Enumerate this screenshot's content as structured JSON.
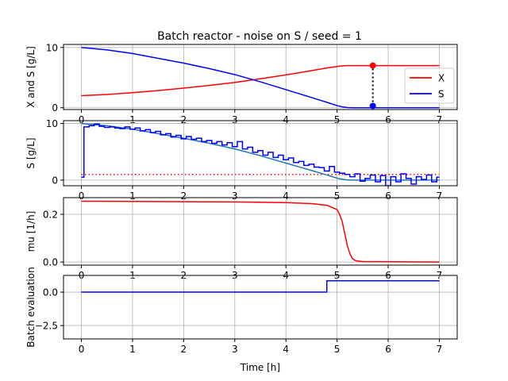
{
  "title": "Batch reactor - noise on S / seed = 1",
  "colors": {
    "red": "#ff0000",
    "blue": "#0000ff",
    "teal": "#1f77b4",
    "grid": "#b0b0b0",
    "black": "#000000"
  },
  "chart_data": [
    {
      "type": "line",
      "ylabel": "X and S [g/L]",
      "xlim": [
        -0.35,
        7.35
      ],
      "ylim": [
        -0.3,
        10.5
      ],
      "xticks": [
        0,
        1,
        2,
        3,
        4,
        5,
        6,
        7
      ],
      "yticks": [
        0,
        10
      ],
      "grid": true,
      "legend": {
        "placement": "right",
        "entries": [
          "X",
          "S"
        ]
      },
      "series": [
        {
          "name": "X",
          "color": "red",
          "x": [
            0,
            0.5,
            1,
            1.5,
            2,
            2.5,
            3,
            3.5,
            4,
            4.5,
            4.8,
            5.0,
            5.1,
            5.2,
            5.3,
            5.5,
            6,
            6.5,
            7
          ],
          "y": [
            2.0,
            2.2,
            2.5,
            2.85,
            3.25,
            3.7,
            4.2,
            4.8,
            5.45,
            6.15,
            6.6,
            6.85,
            6.95,
            7.0,
            7.0,
            7.0,
            7.0,
            7.0,
            7.0
          ]
        },
        {
          "name": "S",
          "color": "blue",
          "x": [
            0,
            0.5,
            1,
            1.5,
            2,
            2.5,
            3,
            3.5,
            4,
            4.5,
            4.8,
            5.0,
            5.1,
            5.2,
            5.3,
            5.5,
            6,
            6.5,
            7
          ],
          "y": [
            10.0,
            9.6,
            9.0,
            8.2,
            7.4,
            6.5,
            5.5,
            4.3,
            3.0,
            1.7,
            0.9,
            0.35,
            0.15,
            0.03,
            0.0,
            0.0,
            0.0,
            0.0,
            0.0
          ]
        }
      ],
      "markers": [
        {
          "x": 5.7,
          "y": 7.0,
          "color": "red"
        },
        {
          "x": 5.7,
          "y": 0.3,
          "color": "blue"
        }
      ],
      "dotted_vertical": {
        "x": 5.7,
        "y1": 0.3,
        "y2": 7.0
      }
    },
    {
      "type": "line",
      "ylabel": "S [g/L]",
      "xlim": [
        -0.35,
        7.35
      ],
      "ylim": [
        -1.0,
        10.5
      ],
      "xticks": [
        0,
        1,
        2,
        3,
        4,
        5,
        6,
        7
      ],
      "yticks": [
        0,
        10
      ],
      "grid": true,
      "setpoint": {
        "y": 1.0,
        "color": "red"
      },
      "true_S": {
        "color": "teal",
        "x": [
          0,
          0.5,
          1,
          1.5,
          2,
          2.5,
          3,
          3.5,
          4,
          4.5,
          4.8,
          5.0,
          5.1,
          5.2,
          5.3,
          5.5,
          6,
          6.5,
          7
        ],
        "y": [
          10.0,
          9.6,
          9.0,
          8.2,
          7.4,
          6.5,
          5.5,
          4.3,
          3.0,
          1.7,
          0.9,
          0.35,
          0.15,
          0.03,
          0.0,
          0.0,
          0.0,
          0.0,
          0.0
        ]
      },
      "measured_S": {
        "color": "blue",
        "start": {
          "t": 0.0,
          "value": 0.5
        },
        "dt": 0.1,
        "values": [
          9.4,
          9.6,
          9.9,
          9.5,
          9.3,
          9.4,
          9.2,
          9.1,
          9.4,
          9.0,
          9.2,
          8.7,
          8.9,
          8.4,
          8.6,
          8.0,
          8.2,
          7.6,
          7.9,
          7.3,
          7.7,
          7.2,
          7.4,
          6.8,
          7.0,
          6.5,
          6.8,
          6.2,
          6.6,
          5.9,
          6.8,
          5.5,
          5.8,
          4.9,
          5.2,
          4.4,
          4.9,
          4.0,
          4.4,
          3.6,
          3.9,
          3.1,
          3.3,
          2.6,
          2.8,
          2.3,
          2.2,
          1.6,
          2.4,
          1.4,
          1.2,
          1.0,
          0.6,
          1.1,
          -0.2,
          0.3,
          0.9,
          -0.3,
          0.8,
          -1.0,
          0.6,
          -0.3,
          1.1,
          0.3,
          -0.7,
          0.6,
          0.1,
          0.9,
          -0.3,
          0.5
        ]
      }
    },
    {
      "type": "line",
      "ylabel": "mu [1/h]",
      "xlim": [
        -0.35,
        7.35
      ],
      "ylim": [
        -0.013,
        0.27
      ],
      "xticks": [
        0,
        1,
        2,
        3,
        4,
        5,
        6,
        7
      ],
      "yticks": [
        0.0,
        0.2
      ],
      "ytick_labels": [
        "0.0",
        "0.2"
      ],
      "grid": true,
      "series": [
        {
          "name": "",
          "color": "red",
          "x": [
            0,
            1,
            2,
            3,
            4,
            4.5,
            4.8,
            5.0,
            5.05,
            5.1,
            5.15,
            5.2,
            5.25,
            5.3,
            5.35,
            5.4,
            5.5,
            6,
            7
          ],
          "y": [
            0.255,
            0.254,
            0.253,
            0.252,
            0.249,
            0.245,
            0.238,
            0.22,
            0.2,
            0.17,
            0.12,
            0.07,
            0.035,
            0.015,
            0.007,
            0.004,
            0.002,
            0.001,
            0.0
          ]
        }
      ]
    },
    {
      "type": "line",
      "ylabel": "Batch evaluation",
      "xlabel": "Time [h]",
      "xlim": [
        -0.35,
        7.35
      ],
      "ylim": [
        -3.5,
        1.25
      ],
      "xticks": [
        0,
        1,
        2,
        3,
        4,
        5,
        6,
        7
      ],
      "yticks": [
        0.0,
        -2.5
      ],
      "ytick_labels": [
        "0.0",
        "−2.5"
      ],
      "grid": true,
      "series": [
        {
          "name": "",
          "color": "blue",
          "x": [
            0,
            4.8,
            4.8,
            7
          ],
          "y": [
            0.0,
            0.0,
            0.85,
            0.85
          ]
        }
      ]
    }
  ]
}
